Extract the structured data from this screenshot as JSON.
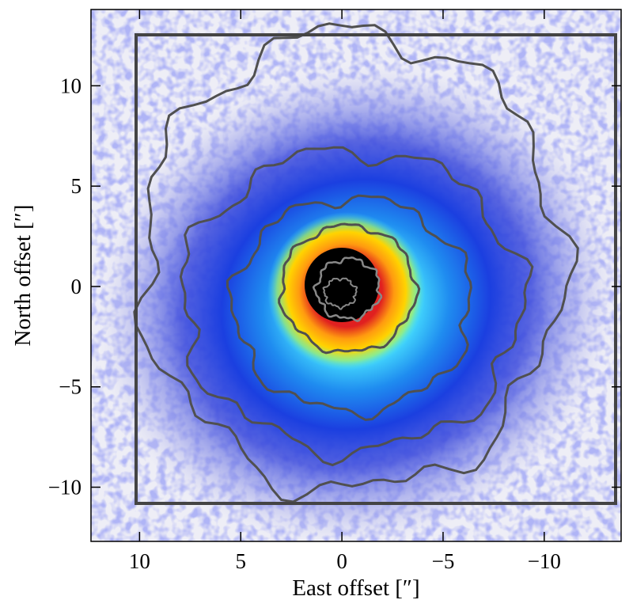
{
  "chart_data": {
    "type": "image",
    "xlabel": "East offset [″]",
    "ylabel": "North offset [″]",
    "xlim": [
      12.4,
      -13.8
    ],
    "ylim": [
      -12.7,
      13.8
    ],
    "xticks": [
      10,
      5,
      0,
      {
        "value": -5,
        "label": "−5"
      },
      {
        "value": -10,
        "label": "−10"
      }
    ],
    "yticks": [
      {
        "value": -10,
        "label": "−10"
      },
      {
        "value": -5,
        "label": "−5"
      },
      0,
      5,
      10
    ]
  }
}
